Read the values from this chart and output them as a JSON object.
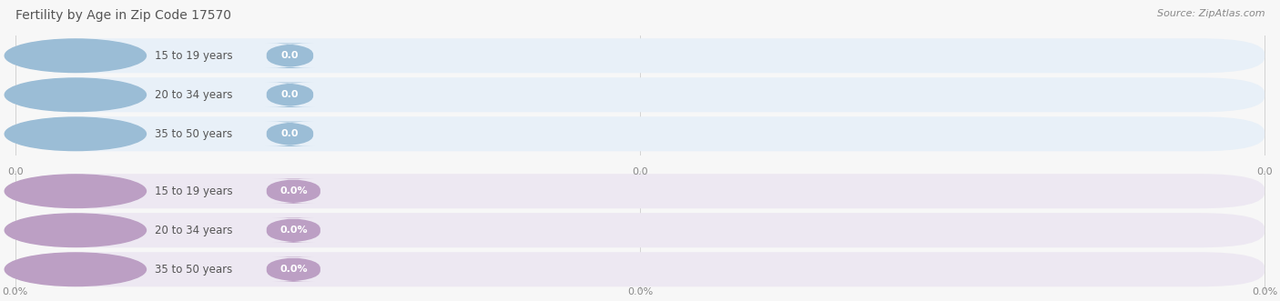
{
  "title": "Fertility by Age in Zip Code 17570",
  "source": "Source: ZipAtlas.com",
  "categories": [
    "15 to 19 years",
    "20 to 34 years",
    "35 to 50 years"
  ],
  "group1_values": [
    0.0,
    0.0,
    0.0
  ],
  "group2_values": [
    0.0,
    0.0,
    0.0
  ],
  "group1_tick_labels": [
    "0.0",
    "0.0",
    "0.0"
  ],
  "group2_tick_labels": [
    "0.0%",
    "0.0%",
    "0.0%"
  ],
  "g1_bar_bg": "#e8f0f8",
  "g1_circle": "#9bbdd6",
  "g1_badge": "#9bbdd6",
  "g2_bar_bg": "#ede8f2",
  "g2_circle": "#bc9fc4",
  "g2_badge": "#bc9fc4",
  "fig_bg": "#f7f7f7",
  "title_color": "#555555",
  "source_color": "#888888",
  "tick_color": "#888888",
  "label_color": "#555555",
  "grid_color": "#cccccc",
  "title_fontsize": 10,
  "source_fontsize": 8,
  "label_fontsize": 8.5,
  "badge_fontsize": 8,
  "tick_fontsize": 8,
  "fig_width": 14.06,
  "fig_height": 3.31
}
